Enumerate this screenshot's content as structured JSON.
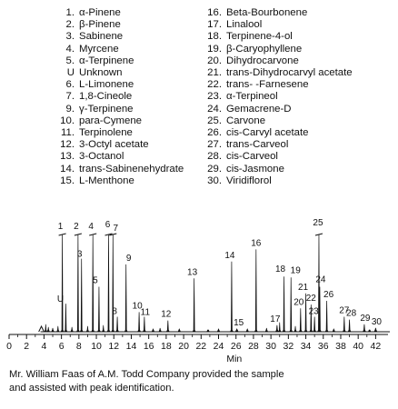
{
  "legend": {
    "left": [
      {
        "num": "1.",
        "name": "α-Pinene"
      },
      {
        "num": "2.",
        "name": "β-Pinene"
      },
      {
        "num": "3.",
        "name": "Sabinene"
      },
      {
        "num": "4.",
        "name": "Myrcene"
      },
      {
        "num": "5.",
        "name": "α-Terpinene"
      },
      {
        "num": "U",
        "name": "Unknown"
      },
      {
        "num": "6.",
        "name": "L-Limonene"
      },
      {
        "num": "7.",
        "name": "1,8-Cineole"
      },
      {
        "num": "9.",
        "name": "γ-Terpinene"
      },
      {
        "num": "10.",
        "name": "para-Cymene"
      },
      {
        "num": "11.",
        "name": "Terpinolene"
      },
      {
        "num": "12.",
        "name": "3-Octyl acetate"
      },
      {
        "num": "13.",
        "name": "3-Octanol"
      },
      {
        "num": "14.",
        "name": "trans-Sabinenehydrate"
      },
      {
        "num": "15.",
        "name": "L-Menthone"
      }
    ],
    "right": [
      {
        "num": "16.",
        "name": "Beta-Bourbonene"
      },
      {
        "num": "17.",
        "name": "Linalool"
      },
      {
        "num": "18.",
        "name": "Terpinene-4-ol"
      },
      {
        "num": "19.",
        "name": "β-Caryophyllene"
      },
      {
        "num": "20.",
        "name": "Dihydrocarvone"
      },
      {
        "num": "21.",
        "name": "trans-Dihydrocarvyl acetate"
      },
      {
        "num": "22.",
        "name": "trans- -Farnesene"
      },
      {
        "num": "23.",
        "name": "α-Terpineol"
      },
      {
        "num": "24.",
        "name": "Gemacrene-D"
      },
      {
        "num": "25.",
        "name": "Carvone"
      },
      {
        "num": "26.",
        "name": "cis-Carvyl acetate"
      },
      {
        "num": "27.",
        "name": "trans-Carveol"
      },
      {
        "num": "28.",
        "name": "cis-Carveol"
      },
      {
        "num": "29.",
        "name": "cis-Jasmone"
      },
      {
        "num": "30.",
        "name": "Viridiflorol"
      }
    ]
  },
  "caption": {
    "line1": "Mr. William Faas of A.M. Todd Company provided the sample",
    "line2": "and assisted with peak identification."
  },
  "chart_data": {
    "type": "line",
    "title": "",
    "xlabel": "Min",
    "ylabel": "",
    "xlim": [
      0,
      43
    ],
    "ylim": [
      0,
      100
    ],
    "xticks": [
      0,
      2,
      4,
      6,
      8,
      10,
      12,
      14,
      16,
      18,
      20,
      22,
      24,
      26,
      28,
      30,
      32,
      34,
      36,
      38,
      40,
      42
    ],
    "grid": false,
    "peaks": [
      {
        "label": "1",
        "x": 6.1,
        "y": 94,
        "offtop": true
      },
      {
        "label": "2",
        "x": 7.9,
        "y": 95,
        "offtop": true
      },
      {
        "label": "3",
        "x": 8.3,
        "y": 78,
        "offtop": false
      },
      {
        "label": "4",
        "x": 9.6,
        "y": 94,
        "offtop": true
      },
      {
        "label": "5",
        "x": 10.3,
        "y": 48,
        "offtop": false
      },
      {
        "label": "U",
        "x": 6.5,
        "y": 30,
        "offtop": false
      },
      {
        "label": "6",
        "x": 11.4,
        "y": 97,
        "offtop": true
      },
      {
        "label": "7",
        "x": 11.9,
        "y": 96,
        "offtop": true
      },
      {
        "label": "8",
        "x": 12.4,
        "y": 16,
        "offtop": false
      },
      {
        "label": "9",
        "x": 13.4,
        "y": 72,
        "offtop": false
      },
      {
        "label": "10",
        "x": 14.9,
        "y": 21,
        "offtop": false
      },
      {
        "label": "11",
        "x": 15.5,
        "y": 16,
        "offtop": false
      },
      {
        "label": "12",
        "x": 18.2,
        "y": 12,
        "offtop": false
      },
      {
        "label": "13",
        "x": 21.2,
        "y": 57,
        "offtop": false
      },
      {
        "label": "14",
        "x": 25.5,
        "y": 75,
        "offtop": false
      },
      {
        "label": "15",
        "x": 26.1,
        "y": 3,
        "offtop": false
      },
      {
        "label": "16",
        "x": 28.3,
        "y": 88,
        "offtop": false
      },
      {
        "label": "17",
        "x": 30.7,
        "y": 7,
        "offtop": false
      },
      {
        "label": "18",
        "x": 31.5,
        "y": 59,
        "offtop": false
      },
      {
        "label": "19",
        "x": 32.3,
        "y": 58,
        "offtop": false
      },
      {
        "label": "20",
        "x": 33.4,
        "y": 25,
        "offtop": false
      },
      {
        "label": "21",
        "x": 34.0,
        "y": 41,
        "offtop": false
      },
      {
        "label": "22",
        "x": 34.6,
        "y": 29,
        "offtop": false
      },
      {
        "label": "23",
        "x": 35.0,
        "y": 16,
        "offtop": false
      },
      {
        "label": "24",
        "x": 35.6,
        "y": 48,
        "offtop": false
      },
      {
        "label": "25",
        "x": 35.5,
        "y": 100,
        "offtop": true
      },
      {
        "label": "26",
        "x": 36.4,
        "y": 33,
        "offtop": false
      },
      {
        "label": "27",
        "x": 38.4,
        "y": 16,
        "offtop": false
      },
      {
        "label": "28",
        "x": 39.0,
        "y": 13,
        "offtop": false
      },
      {
        "label": "29",
        "x": 40.7,
        "y": 8,
        "offtop": false
      },
      {
        "label": "30",
        "x": 42.0,
        "y": 4,
        "offtop": false
      }
    ],
    "minor_peaks": [
      {
        "x": 4.2,
        "y": 8
      },
      {
        "x": 4.5,
        "y": 5
      },
      {
        "x": 5.0,
        "y": 4
      },
      {
        "x": 5.6,
        "y": 6
      },
      {
        "x": 7.2,
        "y": 5
      },
      {
        "x": 9.0,
        "y": 6
      },
      {
        "x": 10.8,
        "y": 7
      },
      {
        "x": 16.5,
        "y": 3
      },
      {
        "x": 17.3,
        "y": 4
      },
      {
        "x": 19.5,
        "y": 3
      },
      {
        "x": 22.8,
        "y": 2
      },
      {
        "x": 24.0,
        "y": 3
      },
      {
        "x": 27.3,
        "y": 3
      },
      {
        "x": 29.5,
        "y": 4
      },
      {
        "x": 31.0,
        "y": 10
      },
      {
        "x": 32.8,
        "y": 6
      },
      {
        "x": 37.2,
        "y": 3
      },
      {
        "x": 41.3,
        "y": 2
      }
    ]
  }
}
